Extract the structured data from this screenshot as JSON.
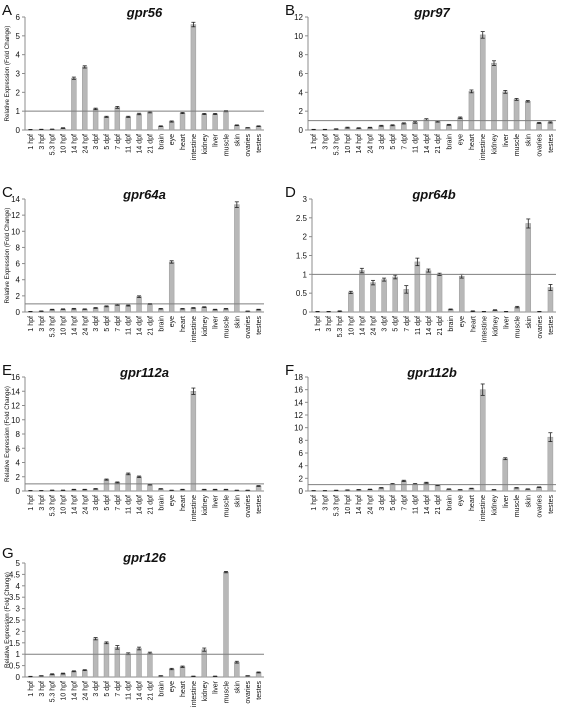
{
  "figure": {
    "ylabel": "Relative Expression (Fold Change)",
    "categories_standard": [
      "1 hpf",
      "3 hpf",
      "5.3 hpf",
      "10 hpf",
      "14 hpf",
      "24 hpf",
      "3 dpf",
      "5 dpf",
      "7 dpf",
      "11 dpf",
      "14 dpf",
      "21 dpf",
      "brain",
      "eye",
      "heart",
      "intestine",
      "kidney",
      "liver",
      "muscle",
      "skin",
      "ovaries",
      "testes"
    ],
    "colors": {
      "bar": "#b8b8b8",
      "bar_stroke": "#9a9a9a",
      "axis": "#8c8c8c",
      "reference_line": "#7f7f7f",
      "text": "#111111"
    }
  },
  "chart_data": [
    {
      "type": "bar",
      "panel": "A",
      "title": "gpr56",
      "ylabel": "Relative Expression (Fold Change)",
      "ylim": [
        0,
        6
      ],
      "yticks": [
        0,
        1,
        2,
        3,
        4,
        5,
        6
      ],
      "reference_line": 1,
      "grid": false,
      "categories": [
        "1 hpf",
        "3 hpf",
        "5.3 hpf",
        "10 hpf",
        "14 hpf",
        "24 hpf",
        "3 dpf",
        "5 dpf",
        "7 dpf",
        "11 dpf",
        "14 dpf",
        "21 dpf",
        "brain",
        "eye",
        "heart",
        "intestine",
        "kidney",
        "liver",
        "muscle",
        "skin",
        "ovaries",
        "testes"
      ],
      "values": [
        0.02,
        0.03,
        0.04,
        0.1,
        2.75,
        3.35,
        1.12,
        0.7,
        1.2,
        0.7,
        0.85,
        0.95,
        0.2,
        0.45,
        0.9,
        5.6,
        0.85,
        0.85,
        1.0,
        0.25,
        0.12,
        0.2
      ],
      "errors": [
        0.01,
        0.01,
        0.01,
        0.02,
        0.06,
        0.06,
        0.04,
        0.03,
        0.05,
        0.03,
        0.04,
        0.04,
        0.02,
        0.03,
        0.03,
        0.12,
        0.03,
        0.03,
        0.03,
        0.02,
        0.01,
        0.02
      ]
    },
    {
      "type": "bar",
      "panel": "B",
      "title": "gpr97",
      "ylabel": "",
      "ylim": [
        0,
        12
      ],
      "yticks": [
        0,
        2,
        4,
        6,
        8,
        10,
        12
      ],
      "reference_line": 1,
      "grid": false,
      "categories": [
        "1 hpf",
        "3 hpf",
        "5.3 hpf",
        "10 hpf",
        "14 hpf",
        "24 hpf",
        "3 dpf",
        "5 dpf",
        "7 dpf",
        "11 dpf",
        "14 dpf",
        "21 dpf",
        "brain",
        "eye",
        "heart",
        "intestine",
        "kidney",
        "liver",
        "muscle",
        "skin",
        "ovaries",
        "testes"
      ],
      "values": [
        0.05,
        0.05,
        0.1,
        0.25,
        0.2,
        0.25,
        0.45,
        0.5,
        0.7,
        0.8,
        1.1,
        0.9,
        0.55,
        1.3,
        4.1,
        10.1,
        7.1,
        4.05,
        3.25,
        3.05,
        0.75,
        0.8
      ],
      "errors": [
        0.02,
        0.02,
        0.03,
        0.05,
        0.04,
        0.04,
        0.05,
        0.05,
        0.06,
        0.08,
        0.1,
        0.06,
        0.05,
        0.08,
        0.15,
        0.35,
        0.25,
        0.15,
        0.1,
        0.08,
        0.06,
        0.06
      ]
    },
    {
      "type": "bar",
      "panel": "C",
      "title": "gpr64a",
      "ylabel": "Relative Expression (Fold Change)",
      "ylim": [
        0,
        14
      ],
      "yticks": [
        0,
        2,
        4,
        6,
        8,
        10,
        12,
        14
      ],
      "reference_line": 1,
      "grid": false,
      "categories": [
        "1 hpf",
        "3 hpf",
        "5.3 hpf",
        "10 hpf",
        "14 hpf",
        "24 hpf",
        "3 dpf",
        "5 dpf",
        "7 dpf",
        "11 dpf",
        "14 dpf",
        "21 dpf",
        "brain",
        "eye",
        "heart",
        "intestine",
        "kidney",
        "liver",
        "muscle",
        "skin",
        "ovaries",
        "testes"
      ],
      "values": [
        0.05,
        0.1,
        0.3,
        0.35,
        0.4,
        0.35,
        0.5,
        0.7,
        0.9,
        0.8,
        1.9,
        1.0,
        0.4,
        6.2,
        0.4,
        0.5,
        0.6,
        0.3,
        0.4,
        13.3,
        0.1,
        0.3
      ],
      "errors": [
        0.02,
        0.03,
        0.04,
        0.04,
        0.05,
        0.04,
        0.05,
        0.06,
        0.07,
        0.06,
        0.1,
        0.06,
        0.04,
        0.15,
        0.04,
        0.05,
        0.05,
        0.04,
        0.04,
        0.35,
        0.02,
        0.04
      ]
    },
    {
      "type": "bar",
      "panel": "D",
      "title": "gpr64b",
      "ylabel": "",
      "ylim": [
        0,
        3
      ],
      "yticks": [
        0,
        0.5,
        1,
        1.5,
        2,
        2.5,
        3
      ],
      "reference_line": 1,
      "grid": false,
      "categories": [
        "1 hpf",
        "3 hpf",
        "5.3 hpf",
        "10 hpf",
        "14 hpf",
        "24 hpf",
        "3 dpf",
        "5 dpf",
        "7 dpf",
        "11 dpf",
        "14 dpf",
        "21 dpf",
        "brain",
        "eye",
        "heart",
        "intestine",
        "kidney",
        "liver",
        "muscle",
        "skin",
        "ovaries",
        "testes"
      ],
      "values": [
        0.01,
        0.01,
        0.02,
        0.52,
        1.1,
        0.78,
        0.86,
        0.93,
        0.6,
        1.33,
        1.1,
        1.0,
        0.07,
        0.95,
        0.02,
        0.01,
        0.05,
        0.01,
        0.13,
        2.35,
        0.01,
        0.65
      ],
      "errors": [
        0.005,
        0.005,
        0.01,
        0.03,
        0.06,
        0.06,
        0.04,
        0.05,
        0.1,
        0.1,
        0.04,
        0.03,
        0.01,
        0.05,
        0.01,
        0.005,
        0.01,
        0.005,
        0.02,
        0.12,
        0.005,
        0.08
      ]
    },
    {
      "type": "bar",
      "panel": "E",
      "title": "gpr112a",
      "ylabel": "Relative Expression (Fold Change)",
      "ylim": [
        0,
        16
      ],
      "yticks": [
        0,
        2,
        4,
        6,
        8,
        10,
        12,
        14,
        16
      ],
      "reference_line": 1,
      "grid": false,
      "categories": [
        "1 hpf",
        "3 hpf",
        "5.3 hpf",
        "10 hpf",
        "14 hpf",
        "24 hpf",
        "3 dpf",
        "5 dpf",
        "7 dpf",
        "11 dpf",
        "14 dpf",
        "21 dpf",
        "brain",
        "eye",
        "heart",
        "intestine",
        "kidney",
        "liver",
        "muscle",
        "skin",
        "ovaries",
        "testes"
      ],
      "values": [
        0.05,
        0.05,
        0.1,
        0.1,
        0.2,
        0.2,
        0.3,
        1.6,
        1.2,
        2.4,
        2.0,
        0.9,
        0.3,
        0.1,
        0.2,
        14.0,
        0.2,
        0.2,
        0.2,
        0.1,
        0.1,
        0.7
      ],
      "errors": [
        0.02,
        0.02,
        0.03,
        0.03,
        0.04,
        0.04,
        0.05,
        0.08,
        0.07,
        0.12,
        0.1,
        0.06,
        0.04,
        0.02,
        0.04,
        0.45,
        0.04,
        0.04,
        0.04,
        0.02,
        0.02,
        0.06
      ]
    },
    {
      "type": "bar",
      "panel": "F",
      "title": "gpr112b",
      "ylabel": "",
      "ylim": [
        0,
        18
      ],
      "yticks": [
        0,
        2,
        4,
        6,
        8,
        10,
        12,
        14,
        16,
        18
      ],
      "reference_line": 1,
      "grid": false,
      "categories": [
        "1 hpf",
        "3 hpf",
        "5.3 hpf",
        "10 hpf",
        "14 hpf",
        "24 hpf",
        "3 dpf",
        "5 dpf",
        "7 dpf",
        "11 dpf",
        "14 dpf",
        "21 dpf",
        "brain",
        "eye",
        "heart",
        "intestine",
        "kidney",
        "liver",
        "muscle",
        "skin",
        "ovaries",
        "testes"
      ],
      "values": [
        0.05,
        0.05,
        0.1,
        0.15,
        0.2,
        0.25,
        0.5,
        1.1,
        1.6,
        1.1,
        1.3,
        0.9,
        0.3,
        0.2,
        0.4,
        16.0,
        0.2,
        5.1,
        0.5,
        0.3,
        0.6,
        8.5
      ],
      "errors": [
        0.02,
        0.02,
        0.03,
        0.03,
        0.04,
        0.04,
        0.05,
        0.08,
        0.1,
        0.08,
        0.08,
        0.06,
        0.04,
        0.03,
        0.04,
        0.9,
        0.03,
        0.15,
        0.05,
        0.04,
        0.05,
        0.7
      ]
    },
    {
      "type": "bar",
      "panel": "G",
      "title": "gpr126",
      "ylabel": "Relative Expression (Fold Change)",
      "ylim": [
        0,
        5
      ],
      "yticks": [
        0,
        0.5,
        1,
        1.5,
        2,
        2.5,
        3,
        3.5,
        4,
        4.5,
        5
      ],
      "reference_line": 1,
      "grid": false,
      "categories": [
        "1 hpf",
        "3 hpf",
        "5.3 hpf",
        "10 hpf",
        "14 hpf",
        "24 hpf",
        "3 dpf",
        "5 dpf",
        "7 dpf",
        "11 dpf",
        "14 dpf",
        "21 dpf",
        "brain",
        "eye",
        "heart",
        "intestine",
        "kidney",
        "liver",
        "muscle",
        "skin",
        "ovaries",
        "testes"
      ],
      "values": [
        0.02,
        0.05,
        0.12,
        0.15,
        0.25,
        0.3,
        1.68,
        1.5,
        1.3,
        1.02,
        1.25,
        1.05,
        0.05,
        0.35,
        0.45,
        0.03,
        1.2,
        0.03,
        4.6,
        0.65,
        0.05,
        0.2
      ],
      "errors": [
        0.01,
        0.01,
        0.02,
        0.02,
        0.02,
        0.02,
        0.05,
        0.04,
        0.08,
        0.04,
        0.06,
        0.04,
        0.01,
        0.03,
        0.03,
        0.01,
        0.07,
        0.01,
        0.03,
        0.04,
        0.01,
        0.02
      ]
    }
  ]
}
